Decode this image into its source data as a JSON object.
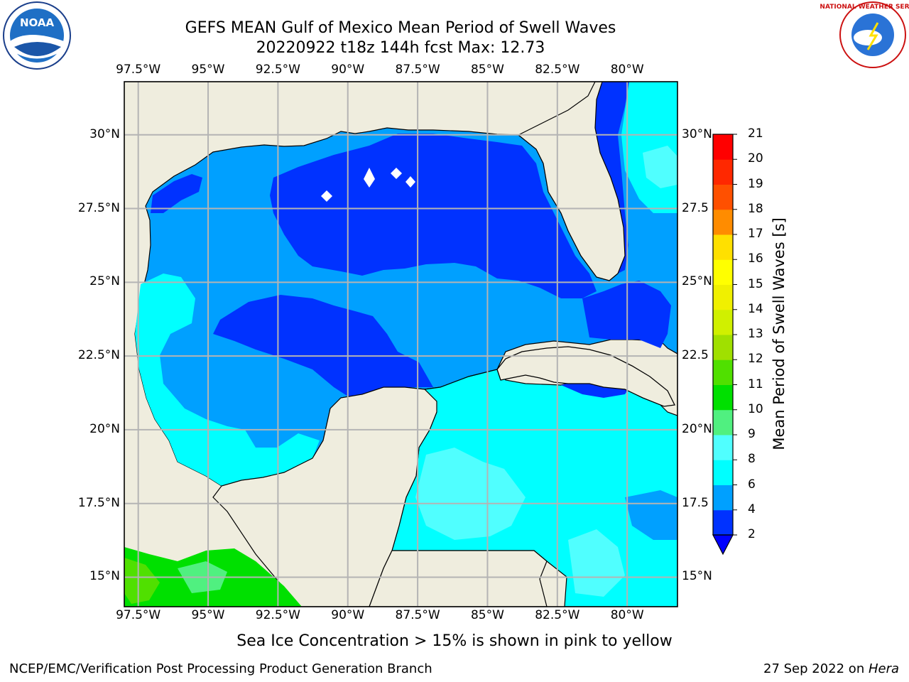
{
  "title": {
    "line1": "GEFS MEAN Gulf of Mexico Mean Period of Swell Waves",
    "line2": "20220922 t18z 144h fcst   Max: 12.73"
  },
  "logos": {
    "left": {
      "icon": "noaa-logo",
      "text": "NOAA"
    },
    "right": {
      "icon": "nws-logo",
      "text": "NATIONAL WEATHER SERVICE"
    }
  },
  "map": {
    "lon_labels": [
      "97.5°W",
      "95°W",
      "92.5°W",
      "90°W",
      "87.5°W",
      "85°W",
      "82.5°W",
      "80°W"
    ],
    "lat_labels_left": [
      "30°N",
      "27.5°N",
      "25°N",
      "22.5°N",
      "20°N",
      "17.5°N",
      "15°N"
    ],
    "lat_labels_right": [
      "30°N",
      "27.5",
      "25°N",
      "22.5",
      "20°N",
      "17.5",
      "15°N"
    ],
    "extent": {
      "lon_min": -98,
      "lon_max": -78.2,
      "lat_min": 14,
      "lat_max": 31.8
    },
    "land_color": "#efedde",
    "grid_color": "#b4b4b4"
  },
  "colorbar": {
    "title": "Mean Period of Swell Waves [s]",
    "tick_labels": [
      "2",
      "4",
      "6",
      "8",
      "9",
      "10",
      "11",
      "12",
      "13",
      "14",
      "15",
      "16",
      "17",
      "18",
      "19",
      "20",
      "21"
    ],
    "colors": [
      "#0032ff",
      "#00a0ff",
      "#00ffff",
      "#50ffff",
      "#a0ffff",
      "#50f080",
      "#00e000",
      "#50e000",
      "#a0e000",
      "#d0f000",
      "#f0f000",
      "#ffff00",
      "#ffe000",
      "#ffb400",
      "#ff8c00",
      "#ff5000",
      "#ff2800",
      "#ff0000"
    ],
    "extend_color": "#0000ff"
  },
  "note": "Sea Ice Concentration > 15% is shown in pink to yellow",
  "footer": {
    "left": "NCEP/EMC/Verification Post Processing Product Generation Branch",
    "right_date": "27 Sep 2022 on ",
    "right_host": "Hera"
  }
}
